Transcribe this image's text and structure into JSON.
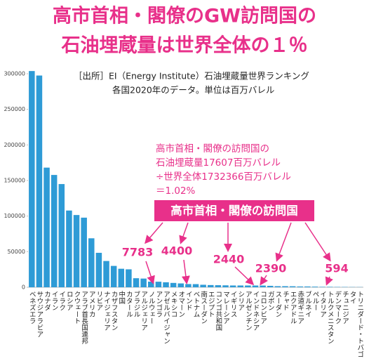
{
  "chart_data": {
    "type": "bar",
    "title": "高市首相・閣僚のGW訪問国の",
    "subtitle": "石油埋蔵量は世界全体の１％",
    "source": [
      "［出所］EI（Energy Institute）石油埋蔵量世界ランキング",
      "各国2020年のデータ。単位は百万バレル"
    ],
    "note": [
      "高市首相・閣僚の訪問国の",
      "石油埋蔵量17607百万バレル",
      "÷世界全体1732366百万バレル",
      "＝1.02%"
    ],
    "highlight": "高市首相・閣僚の訪問国",
    "annotations": [
      "7783",
      "4400",
      "2440",
      "2390",
      "594"
    ],
    "categories": [
      "ベネズエラ",
      "サウジアラビア",
      "カナダ",
      "イラン",
      "イラク",
      "ロシア",
      "クウェート",
      "アラブ首長国連邦",
      "アメリカ",
      "リビア",
      "ナイジェリア",
      "カザフスタン",
      "中国",
      "カタール",
      "ブラジル",
      "アルジェリア",
      "ノルウェー",
      "アンゴラ",
      "アゼルバイジャン",
      "メキシコ",
      "オマーン",
      "インド",
      "ベトナム",
      "南スーダン",
      "エジプト",
      "コンゴ共和国",
      "マレーシア",
      "イギリス",
      "シリア",
      "アルゼンチン",
      "インドネシア",
      "コロンビア",
      "ガボン",
      "スーダン",
      "チャド",
      "エクアドル",
      "赤道ギニア",
      "ブルネイ",
      "ペルー",
      "イタリア",
      "トルクメニスタン",
      "デンマーク",
      "チュニジア",
      "タイ",
      "トリニダード・トバゴ"
    ],
    "values": [
      303800,
      297500,
      168100,
      157800,
      145000,
      107800,
      101500,
      97800,
      68800,
      48400,
      36900,
      30000,
      26000,
      25200,
      12700,
      12200,
      7900,
      7783,
      7000,
      6100,
      5400,
      4500,
      4400,
      3500,
      3100,
      2900,
      2700,
      2500,
      2500,
      2480,
      2440,
      2390,
      2000,
      1500,
      1500,
      1400,
      1100,
      1100,
      860,
      600,
      594,
      440,
      400,
      300,
      240
    ],
    "color": "#2e9bd6",
    "ylim": [
      0,
      300000
    ],
    "yticks": [
      0,
      50000,
      100000,
      150000,
      200000,
      250000,
      300000
    ]
  }
}
